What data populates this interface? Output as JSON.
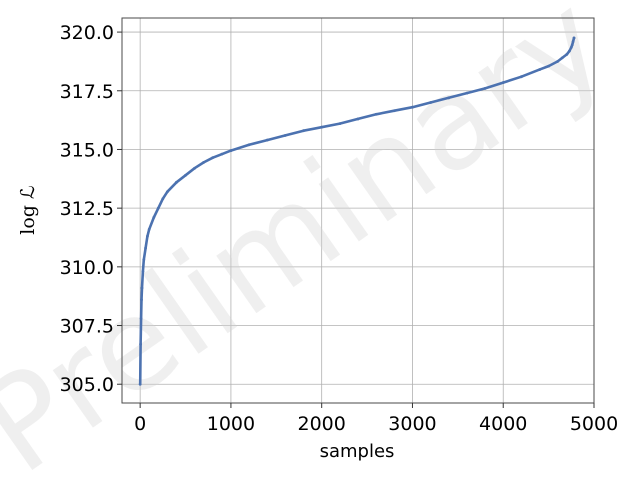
{
  "chart_data": {
    "type": "scatter",
    "xlabel": "samples",
    "ylabel": "log ℒ",
    "xlim": [
      -200,
      5000
    ],
    "ylim": [
      304.2,
      320.6
    ],
    "xticks": [
      0,
      1000,
      2000,
      3000,
      4000,
      5000
    ],
    "yticks": [
      305.0,
      307.5,
      310.0,
      312.5,
      315.0,
      317.5,
      320.0
    ],
    "xtick_labels": [
      "0",
      "1000",
      "2000",
      "3000",
      "4000",
      "5000"
    ],
    "ytick_labels": [
      "305.0",
      "307.5",
      "310.0",
      "312.5",
      "315.0",
      "317.5",
      "320.0"
    ],
    "grid": true,
    "watermark": "Preliminary",
    "series": [
      {
        "color": "#4c72b0",
        "x": [
          0,
          5,
          10,
          15,
          20,
          30,
          40,
          60,
          80,
          100,
          150,
          200,
          250,
          300,
          400,
          500,
          600,
          700,
          800,
          900,
          1000,
          1200,
          1400,
          1600,
          1800,
          2000,
          2200,
          2400,
          2600,
          2800,
          3000,
          3200,
          3400,
          3600,
          3800,
          4000,
          4200,
          4400,
          4500,
          4600,
          4650,
          4700,
          4730,
          4750,
          4760,
          4770,
          4780
        ],
        "y": [
          305.0,
          306.7,
          307.8,
          308.6,
          309.1,
          309.8,
          310.3,
          310.8,
          311.3,
          311.6,
          312.1,
          312.5,
          312.9,
          313.2,
          313.6,
          313.9,
          314.2,
          314.45,
          314.65,
          314.8,
          314.95,
          315.2,
          315.4,
          315.6,
          315.8,
          315.95,
          316.1,
          316.3,
          316.5,
          316.65,
          316.8,
          317.0,
          317.2,
          317.4,
          317.6,
          317.85,
          318.1,
          318.4,
          318.55,
          318.75,
          318.9,
          319.05,
          319.2,
          319.35,
          319.45,
          319.6,
          319.75
        ]
      }
    ]
  }
}
